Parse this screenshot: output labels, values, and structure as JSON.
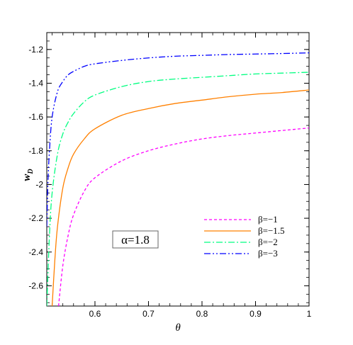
{
  "chart_data": {
    "type": "line",
    "title": "",
    "xlabel": "θ",
    "ylabel_main": "w",
    "ylabel_sub": "D",
    "xlim": [
      0.51,
      1.0
    ],
    "ylim": [
      -2.72,
      -1.1
    ],
    "xticks": [
      0.6,
      0.7,
      0.8,
      0.9,
      1.0
    ],
    "xtick_labels": [
      "0.6",
      "0.7",
      "0.8",
      "0.9",
      "1"
    ],
    "yticks": [
      -2.6,
      -2.4,
      -2.2,
      -2.0,
      -1.8,
      -1.6,
      -1.4,
      -1.2
    ],
    "ytick_labels": [
      "-2.6",
      "-2.4",
      "-2.2",
      "-2",
      "-1.8",
      "-1.6",
      "-1.4",
      "-1.2"
    ],
    "grid": false,
    "legend_position": "lower-right",
    "annotation": "α=1.8",
    "series": [
      {
        "name": "β=−1",
        "color": "#ff00ff",
        "dash": "dashed",
        "x": [
          0.532,
          0.54,
          0.55,
          0.56,
          0.58,
          0.6,
          0.65,
          0.7,
          0.75,
          0.8,
          0.85,
          0.9,
          0.95,
          1.0
        ],
        "y": [
          -2.72,
          -2.48,
          -2.3,
          -2.18,
          -2.04,
          -1.96,
          -1.86,
          -1.8,
          -1.76,
          -1.73,
          -1.71,
          -1.695,
          -1.68,
          -1.665
        ]
      },
      {
        "name": "β=−1.5",
        "color": "#ff8000",
        "dash": "solid",
        "x": [
          0.52,
          0.525,
          0.53,
          0.54,
          0.55,
          0.56,
          0.58,
          0.6,
          0.65,
          0.7,
          0.75,
          0.8,
          0.85,
          0.9,
          0.95,
          1.0
        ],
        "y": [
          -2.72,
          -2.45,
          -2.25,
          -2.02,
          -1.9,
          -1.82,
          -1.73,
          -1.67,
          -1.59,
          -1.55,
          -1.52,
          -1.5,
          -1.48,
          -1.465,
          -1.455,
          -1.44
        ],
        "extend_left": true
      },
      {
        "name": "β=−2",
        "color": "#00ff80",
        "dash": "dashdot",
        "x": [
          0.51,
          0.515,
          0.52,
          0.53,
          0.54,
          0.55,
          0.56,
          0.58,
          0.6,
          0.65,
          0.7,
          0.75,
          0.8,
          0.85,
          0.9,
          0.95,
          1.0
        ],
        "y": [
          -2.72,
          -2.3,
          -2.05,
          -1.82,
          -1.7,
          -1.63,
          -1.58,
          -1.51,
          -1.47,
          -1.42,
          -1.39,
          -1.375,
          -1.365,
          -1.355,
          -1.345,
          -1.34,
          -1.335
        ]
      },
      {
        "name": "β=−3",
        "color": "#0000ff",
        "dash": "dashdotdot",
        "x": [
          0.51,
          0.512,
          0.515,
          0.52,
          0.53,
          0.54,
          0.55,
          0.56,
          0.58,
          0.6,
          0.65,
          0.7,
          0.75,
          0.8,
          0.85,
          0.9,
          0.95,
          1.0
        ],
        "y": [
          -2.25,
          -2.0,
          -1.8,
          -1.6,
          -1.45,
          -1.39,
          -1.35,
          -1.33,
          -1.3,
          -1.285,
          -1.265,
          -1.25,
          -1.24,
          -1.235,
          -1.23,
          -1.227,
          -1.224,
          -1.22
        ]
      }
    ]
  }
}
